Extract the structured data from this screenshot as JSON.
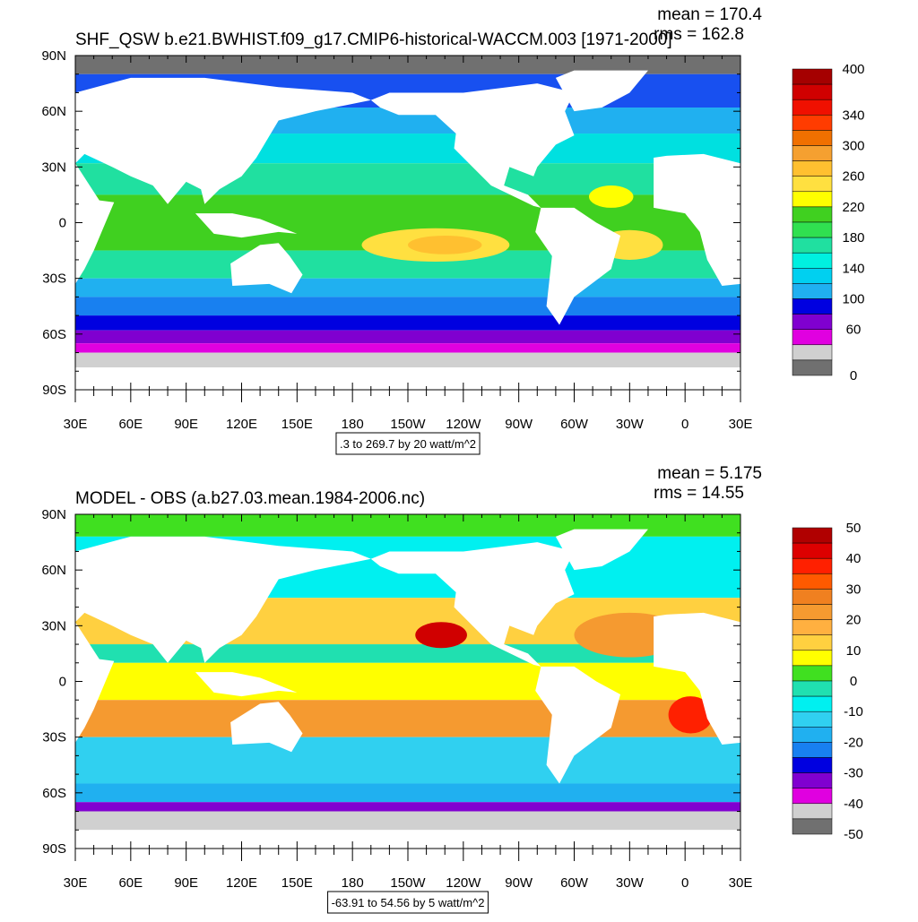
{
  "panels": [
    {
      "title": "SHF_QSW b.e21.BWHIST.f09_g17.CMIP6-historical-WACCM.003 [1971-2000]",
      "mean": "mean = 170.4",
      "rms": "rms = 162.8",
      "lat_labels": [
        "90N",
        "60N",
        "30N",
        "0",
        "30S",
        "60S",
        "90S"
      ],
      "lon_labels": [
        "30E",
        "60E",
        "90E",
        "120E",
        "150E",
        "180",
        "150W",
        "120W",
        "90W",
        "60W",
        "30W",
        "0",
        "30E"
      ],
      "colorbar": {
        "labels": [
          "400",
          "340",
          "300",
          "260",
          "220",
          "180",
          "140",
          "100",
          "60",
          "0"
        ],
        "colors": [
          "#a50000",
          "#d00000",
          "#f01000",
          "#ff3c00",
          "#f07000",
          "#ff8a20",
          "#f5a030",
          "#ffc030",
          "#ffe040",
          "#ffff00",
          "#40d020",
          "#30e050",
          "#20e0a0",
          "#00f0e0",
          "#00d0f0",
          "#20b0f0",
          "#1880f0",
          "#0000e0",
          "#8000d0",
          "#e000e0",
          "#d0d0d0",
          "#707070"
        ]
      },
      "info": ".3 to 269.7 by 20 watt/m^2"
    },
    {
      "title": "MODEL - OBS (a.b27.03.mean.1984-2006.nc)",
      "mean": "mean = 5.175",
      "rms": "rms = 14.55",
      "lat_labels": [
        "90N",
        "60N",
        "30N",
        "0",
        "30S",
        "60S",
        "90S"
      ],
      "lon_labels": [
        "30E",
        "60E",
        "90E",
        "120E",
        "150E",
        "180",
        "150W",
        "120W",
        "90W",
        "60W",
        "30W",
        "0",
        "30E"
      ],
      "colorbar": {
        "labels": [
          "50",
          "40",
          "30",
          "20",
          "10",
          "0",
          "-10",
          "-20",
          "-30",
          "-40",
          "-50"
        ],
        "colors": [
          "#b00000",
          "#dd0000",
          "#ff2000",
          "#ff5a00",
          "#f08020",
          "#f59a30",
          "#ffb040",
          "#ffd040",
          "#ffff00",
          "#40e020",
          "#30e060",
          "#20e0b0",
          "#00f0f0",
          "#30d0f0",
          "#20b0f0",
          "#1880f0",
          "#0000e0",
          "#8000d0",
          "#e000e0",
          "#d0d0d0",
          "#707070"
        ]
      },
      "info": "-63.91 to 54.56 by 5 watt/m^2"
    }
  ]
}
